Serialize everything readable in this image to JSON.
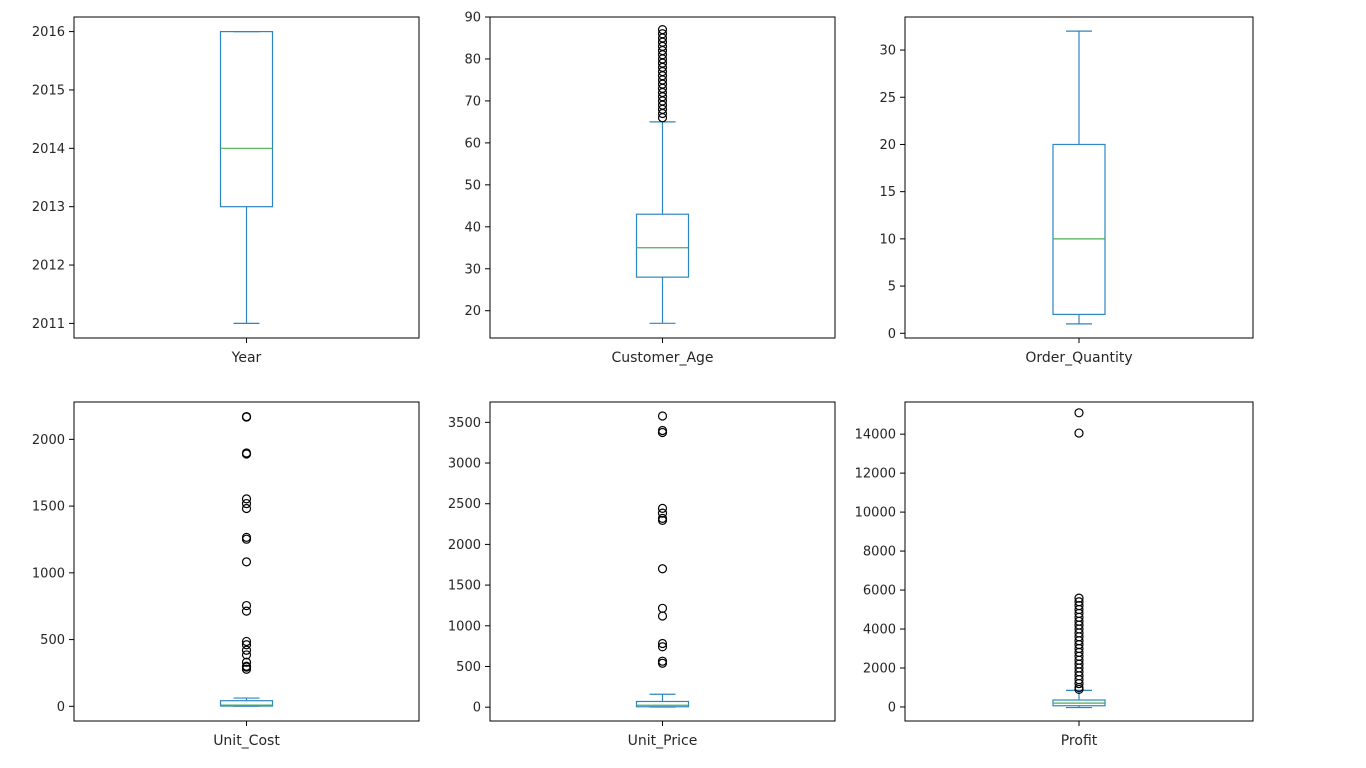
{
  "colors": {
    "box": "#2e86c1",
    "median": "#4caf50",
    "flier": "#000000",
    "frame": "#000000",
    "text": "#262626"
  },
  "chart_data": [
    {
      "type": "box",
      "xlabel": "Year",
      "ylim": [
        2010.75,
        2016.25
      ],
      "yticks": [
        2011,
        2012,
        2013,
        2014,
        2015,
        2016
      ],
      "stats": {
        "whislo": 2011,
        "q1": 2013,
        "med": 2014,
        "q3": 2016,
        "whishi": 2016
      },
      "fliers": []
    },
    {
      "type": "box",
      "xlabel": "Customer_Age",
      "ylim": [
        13.5,
        90
      ],
      "yticks": [
        20,
        30,
        40,
        50,
        60,
        70,
        80,
        90
      ],
      "stats": {
        "whislo": 17,
        "q1": 28,
        "med": 35,
        "q3": 43,
        "whishi": 65
      },
      "fliers": [
        66,
        67,
        68,
        69,
        70,
        71,
        72,
        73,
        74,
        75,
        76,
        77,
        78,
        79,
        80,
        81,
        82,
        83,
        84,
        85,
        86,
        87
      ]
    },
    {
      "type": "box",
      "xlabel": "Order_Quantity",
      "ylim": [
        -0.5,
        33.5
      ],
      "yticks": [
        0,
        5,
        10,
        15,
        20,
        25,
        30
      ],
      "stats": {
        "whislo": 1,
        "q1": 2,
        "med": 10,
        "q3": 20,
        "whishi": 32
      },
      "fliers": []
    },
    {
      "type": "box",
      "xlabel": "Unit_Cost",
      "ylim": [
        -110,
        2280
      ],
      "yticks": [
        0,
        500,
        1000,
        1500,
        2000
      ],
      "stats": {
        "whislo": 1,
        "q1": 2,
        "med": 9,
        "q3": 42,
        "whishi": 62
      },
      "fliers": [
        2171,
        2167,
        1898,
        1890,
        1554,
        1519,
        1482,
        1266,
        1252,
        1082,
        755,
        713,
        486,
        461,
        420,
        385,
        330,
        300,
        294,
        278
      ]
    },
    {
      "type": "box",
      "xlabel": "Unit_Price",
      "ylim": [
        -170,
        3750
      ],
      "yticks": [
        0,
        500,
        1000,
        1500,
        2000,
        2500,
        3000,
        3500
      ],
      "stats": {
        "whislo": 2,
        "q1": 5,
        "med": 24,
        "q3": 70,
        "whishi": 159
      },
      "fliers": [
        3578,
        3400,
        3375,
        2443,
        2384,
        2320,
        2295,
        1701,
        1215,
        1120,
        782,
        742,
        565,
        540
      ]
    },
    {
      "type": "box",
      "xlabel": "Profit",
      "ylim": [
        -720,
        15650
      ],
      "yticks": [
        0,
        2000,
        4000,
        6000,
        8000,
        10000,
        12000,
        14000
      ],
      "stats": {
        "whislo": -30,
        "q1": 63,
        "med": 199,
        "q3": 358,
        "whishi": 850
      },
      "fliers": [
        15096,
        14055,
        5586,
        5400,
        5200,
        5000,
        4800,
        4600,
        4400,
        4200,
        4000,
        3800,
        3600,
        3400,
        3200,
        3000,
        2800,
        2600,
        2400,
        2200,
        2000,
        1800,
        1600,
        1400,
        1200,
        1000,
        900
      ]
    }
  ]
}
